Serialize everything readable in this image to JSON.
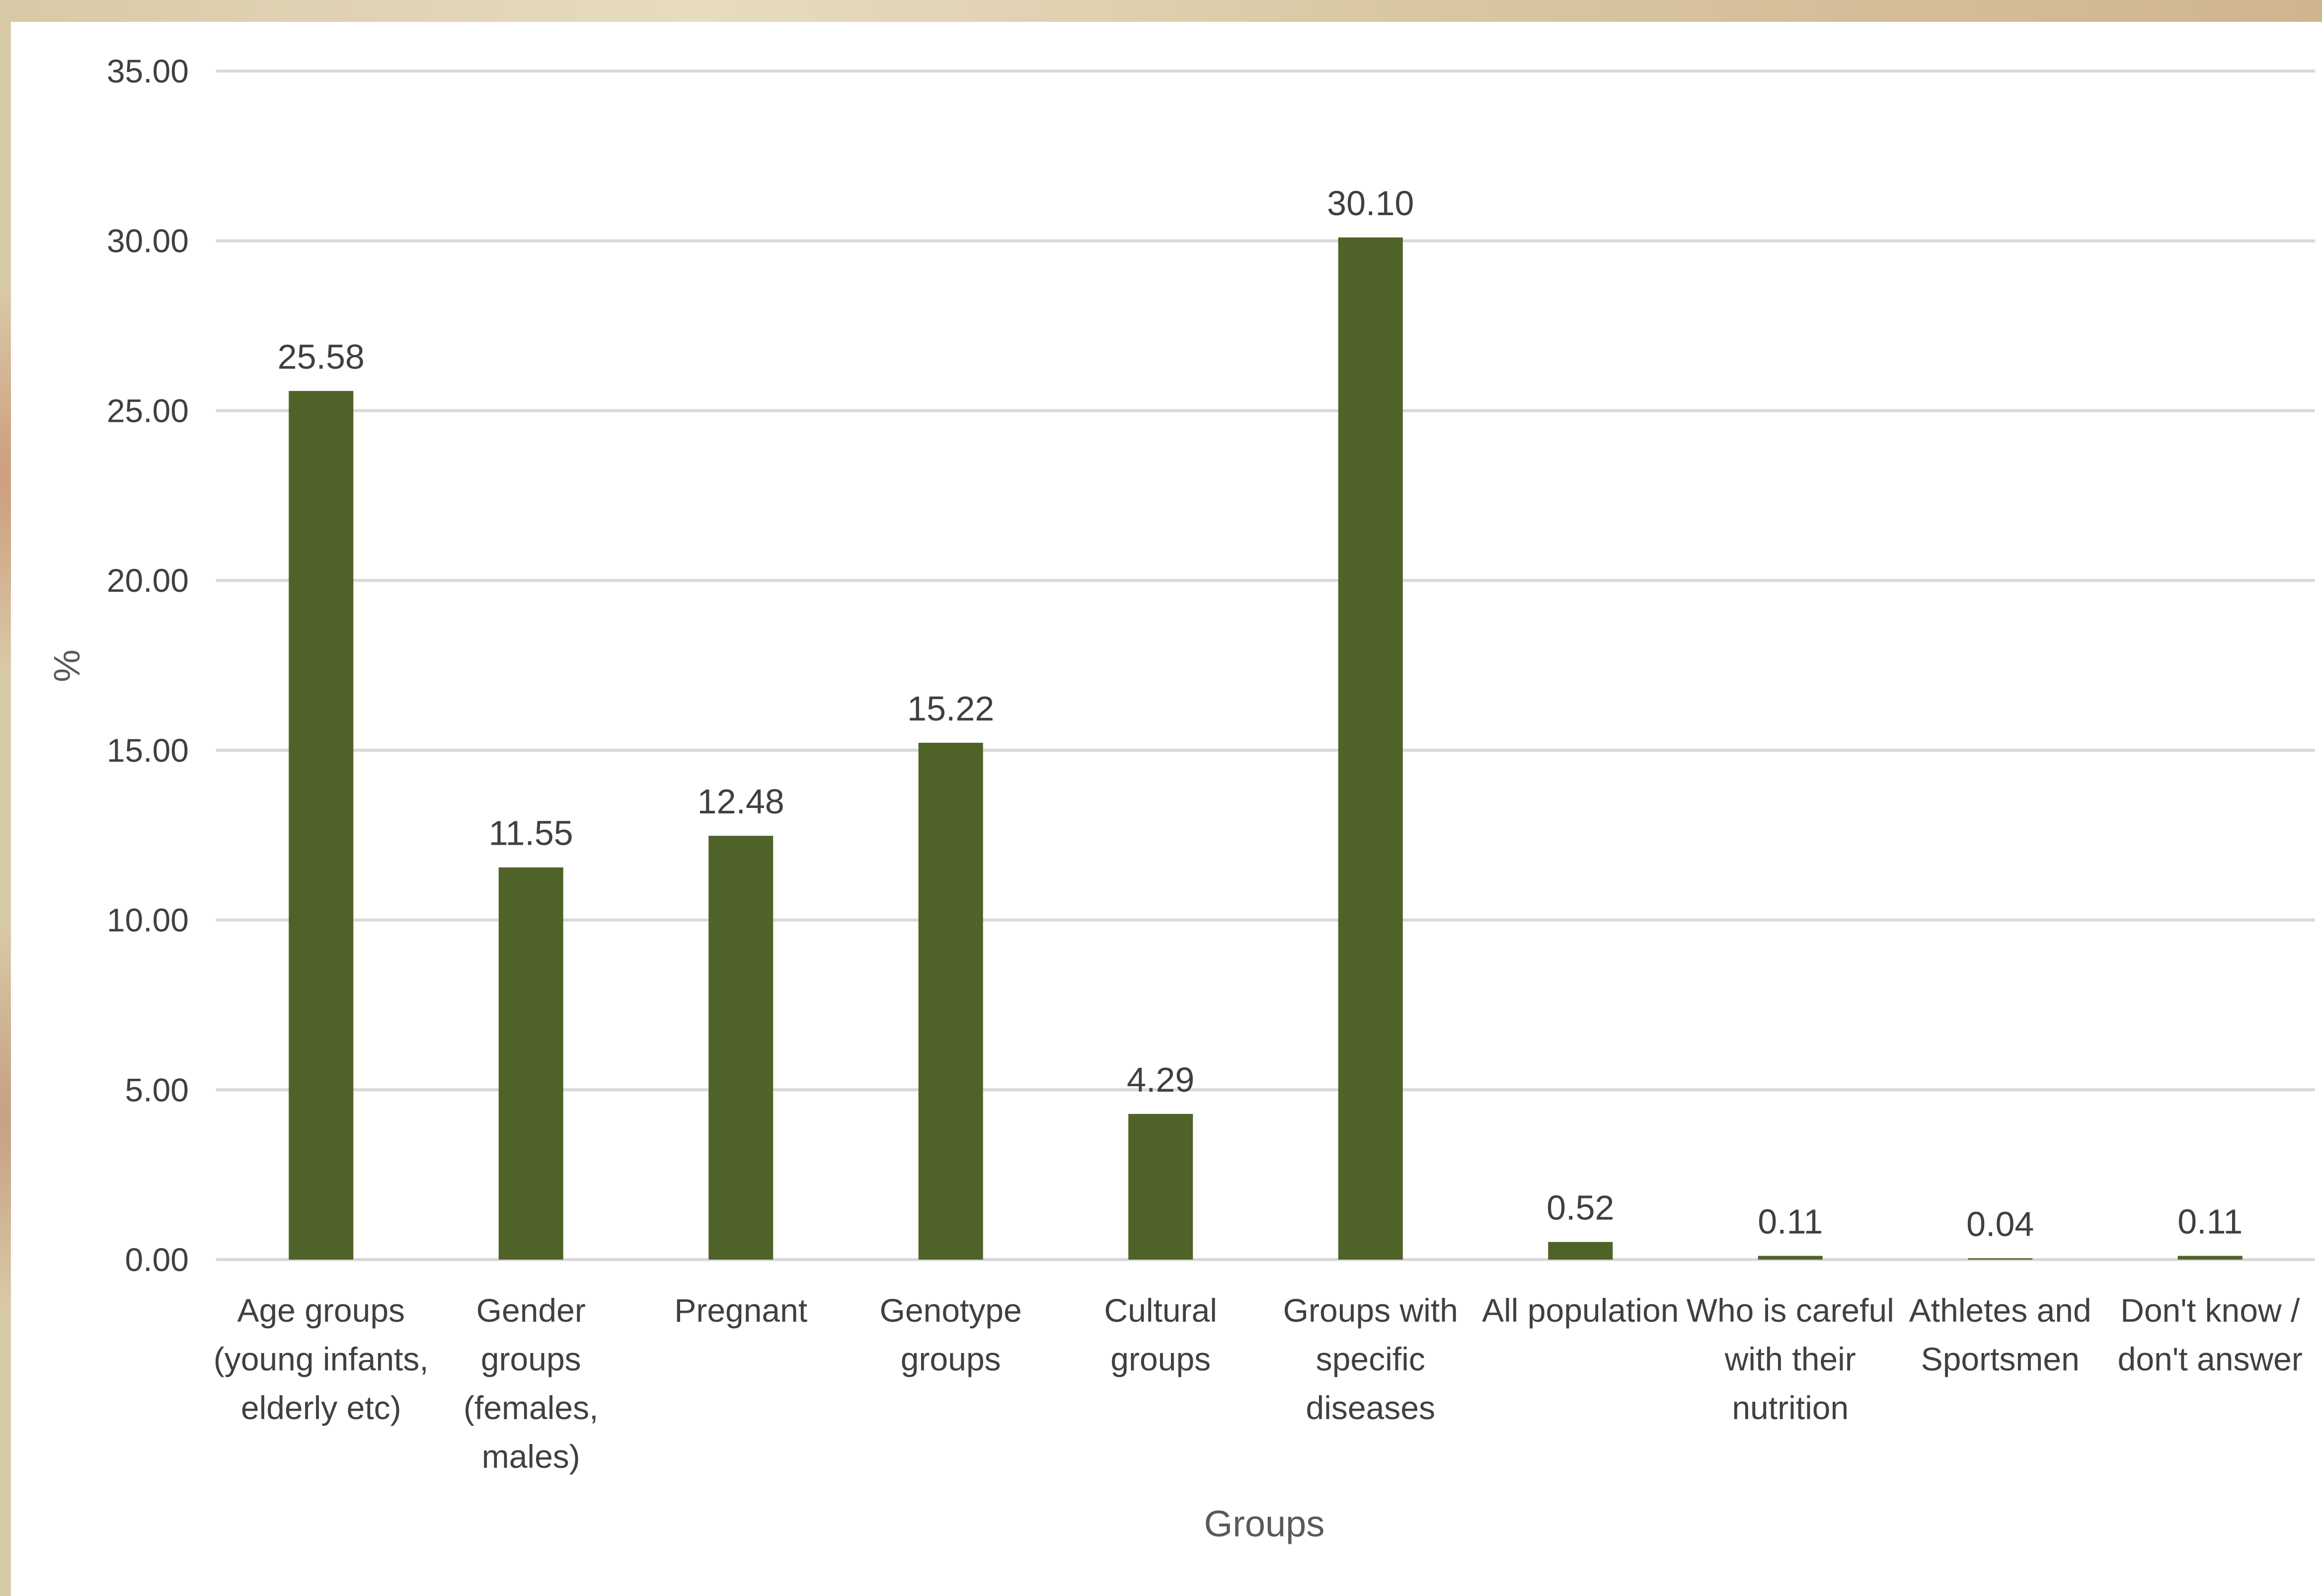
{
  "chart_data": {
    "type": "bar",
    "title": "",
    "xlabel": "Groups",
    "ylabel": "%",
    "ylim": [
      0,
      35
    ],
    "yticks": [
      "0.00",
      "5.00",
      "10.00",
      "15.00",
      "20.00",
      "25.00",
      "30.00",
      "35.00"
    ],
    "grid": true,
    "legend": "none",
    "bar_color": "#4f6228",
    "categories": [
      [
        "Age groups",
        "(young infants,",
        "elderly etc)"
      ],
      [
        "Gender",
        "groups",
        "(females,",
        "males)"
      ],
      [
        "Pregnant"
      ],
      [
        "Genotype",
        "groups"
      ],
      [
        "Cultural",
        "groups"
      ],
      [
        "Groups with",
        "specific",
        "diseases"
      ],
      [
        "All population"
      ],
      [
        "Who is careful",
        "with their",
        "nutrition"
      ],
      [
        "Athletes and",
        "Sportsmen"
      ],
      [
        "Don't know /",
        "don't answer"
      ]
    ],
    "values": [
      25.58,
      11.55,
      12.48,
      15.22,
      4.29,
      30.1,
      0.52,
      0.11,
      0.04,
      0.11
    ],
    "value_labels": [
      "25.58",
      "11.55",
      "12.48",
      "15.22",
      "4.29",
      "30.10",
      "0.52",
      "0.11",
      "0.04",
      "0.11"
    ]
  }
}
